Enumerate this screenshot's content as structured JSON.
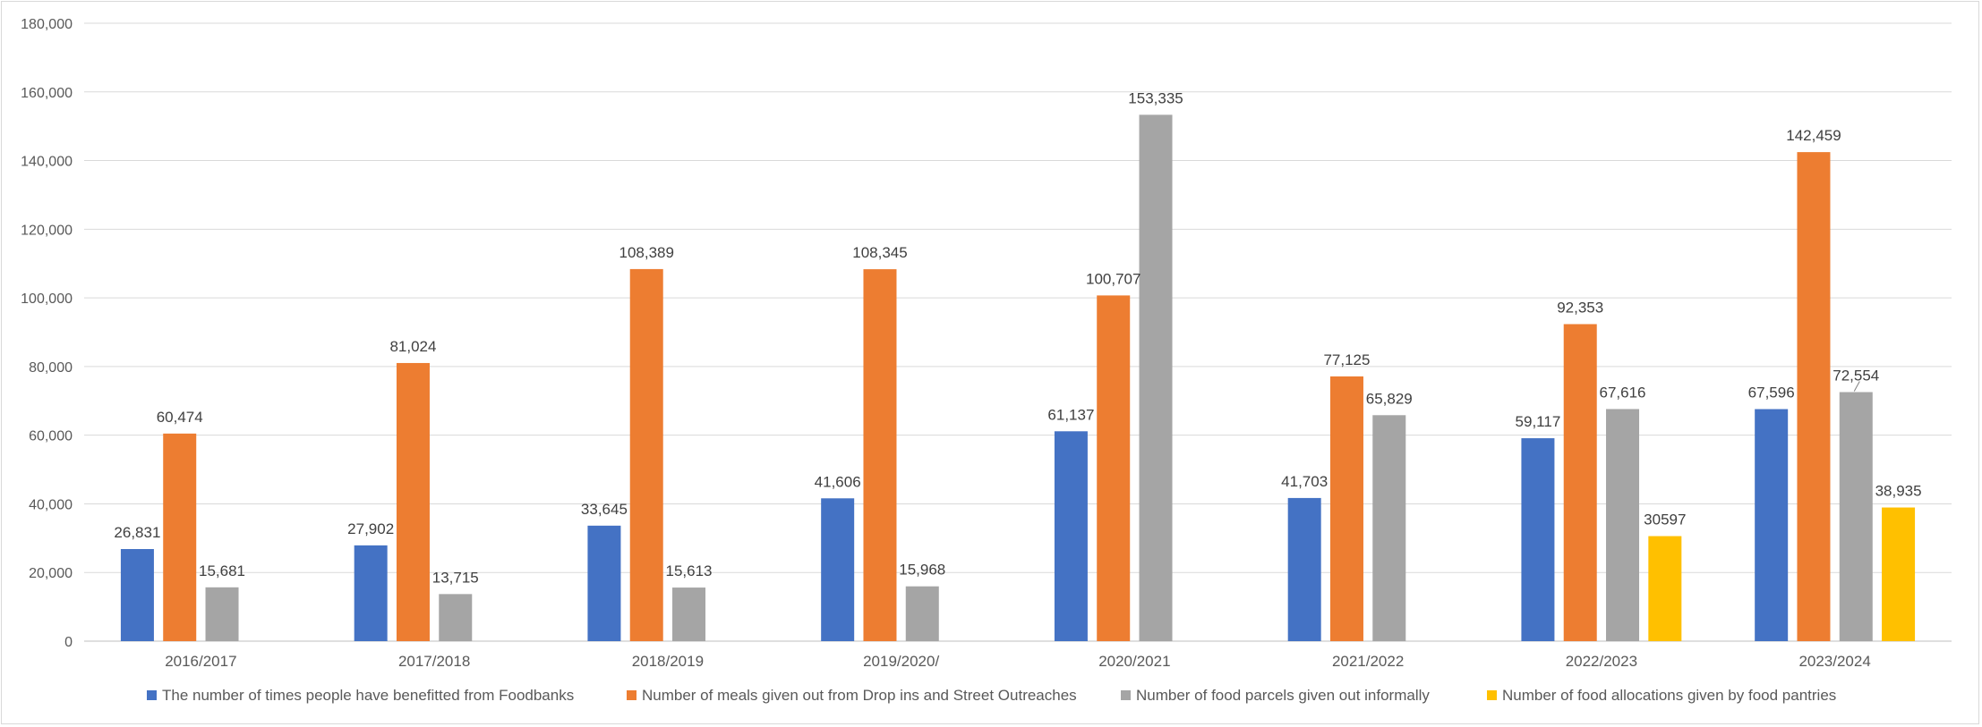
{
  "chart_data": {
    "type": "bar",
    "title": "",
    "xlabel": "",
    "ylabel": "",
    "ylim": [
      0,
      180000
    ],
    "y_ticks": [
      0,
      20000,
      40000,
      60000,
      80000,
      100000,
      120000,
      140000,
      160000,
      180000
    ],
    "y_tick_labels": [
      "0",
      "20,000",
      "40,000",
      "60,000",
      "80,000",
      "100,000",
      "120,000",
      "140,000",
      "160,000",
      "180,000"
    ],
    "grid": true,
    "legend_position": "bottom",
    "categories": [
      "2016/2017",
      "2017/2018",
      "2018/2019",
      "2019/2020/",
      "2020/2021",
      "2021/2022",
      "2022/2023",
      "2023/2024"
    ],
    "series": [
      {
        "name": "The number of times people have benefitted from Foodbanks",
        "color": "#4472C4",
        "values": [
          26831,
          27902,
          33645,
          41606,
          61137,
          41703,
          59117,
          67596
        ],
        "labels": [
          "26,831",
          "27,902",
          "33,645",
          "41,606",
          "61,137",
          "41,703",
          "59,117",
          "67,596"
        ]
      },
      {
        "name": "Number of meals given out from Drop ins and Street Outreaches",
        "color": "#ED7D31",
        "values": [
          60474,
          81024,
          108389,
          108345,
          100707,
          77125,
          92353,
          142459
        ],
        "labels": [
          "60,474",
          "81,024",
          "108,389",
          "108,345",
          "100,707",
          "77,125",
          "92,353",
          "142,459"
        ]
      },
      {
        "name": "Number of food parcels given out informally",
        "color": "#A5A5A5",
        "values": [
          15681,
          13715,
          15613,
          15968,
          153335,
          65829,
          67616,
          72554
        ],
        "labels": [
          "15,681",
          "13,715",
          "15,613",
          "15,968",
          "153,335",
          "65,829",
          "67,616",
          "72,554"
        ]
      },
      {
        "name": "Number of food allocations given by food pantries",
        "color": "#FFC000",
        "values": [
          null,
          null,
          null,
          null,
          null,
          null,
          30597,
          38935
        ],
        "labels": [
          null,
          null,
          null,
          null,
          null,
          null,
          "30597",
          "38,935"
        ]
      }
    ]
  }
}
